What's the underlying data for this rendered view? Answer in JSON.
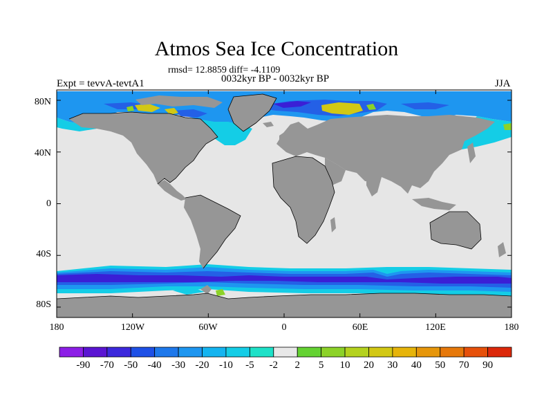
{
  "title": "Atmos Sea Ice Concentration",
  "stats": "rmsd= 12.8859 diff= -4.1109",
  "period": "0032kyr BP - 0032kyr BP",
  "experiment": "Expt = tevvA-tevtA1",
  "season": "JJA",
  "lat_ticks": [
    "80N",
    "40N",
    "0",
    "40S",
    "80S"
  ],
  "lon_ticks": [
    "180",
    "120W",
    "60W",
    "0",
    "60E",
    "120E",
    "180"
  ],
  "colorbar": {
    "labels": [
      "-90",
      "-70",
      "-50",
      "-40",
      "-30",
      "-20",
      "-10",
      "-5",
      "-2",
      "2",
      "5",
      "10",
      "20",
      "30",
      "40",
      "50",
      "70",
      "90"
    ],
    "colors": [
      "#8c1ee6",
      "#5a14d2",
      "#3c28dc",
      "#1e50e6",
      "#1e78eb",
      "#1e96f0",
      "#14b4f0",
      "#14cde6",
      "#1ee1c8",
      "#e8e8e8",
      "#64d232",
      "#8cd228",
      "#b4d21e",
      "#d2c814",
      "#e6b40a",
      "#e6960a",
      "#e6780a",
      "#e6500a",
      "#dc280a"
    ]
  },
  "palette": {
    "land": "#969696",
    "neutral": "#e6e6e6",
    "deep": "#3a1fd6",
    "strong": "#2460e6",
    "mid": "#1e96f0",
    "light": "#14cde6",
    "pale": "#1ee1c8",
    "pos_low": "#8cd228",
    "pos_mid": "#d2c814"
  }
}
